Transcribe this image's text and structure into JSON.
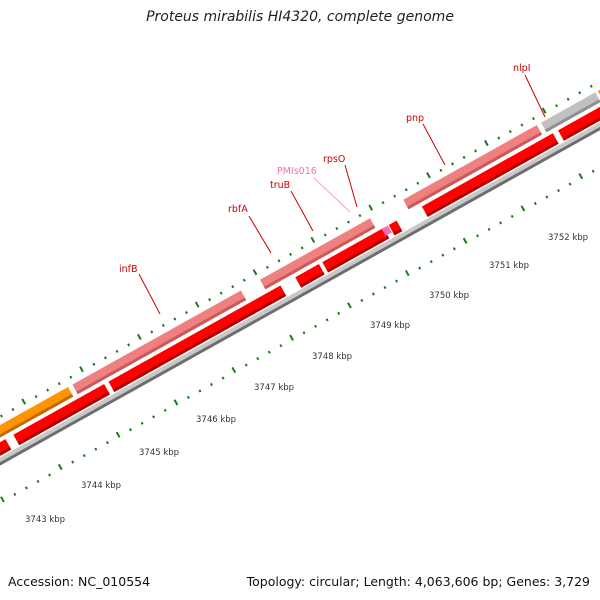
{
  "title": "Proteus mirabilis HI4320, complete genome",
  "footer": {
    "accession": "Accession: NC_010554",
    "summary": "Topology: circular; Length: 4,063,606 bp; Genes: 3,729"
  },
  "colors": {
    "cds": "#ff0000",
    "gene": "#f08080",
    "pseudo_or_misc": "#c0c0c0",
    "rna": "#ff8c00",
    "ncrna": "#ff69b4",
    "tick": "#1a7a1a",
    "backbone": "#808080"
  },
  "scale_labels": [
    "3743 kbp",
    "3744 kbp",
    "3745 kbp",
    "3746 kbp",
    "3747 kbp",
    "3748 kbp",
    "3749 kbp",
    "3750 kbp",
    "3751 kbp",
    "3752 kbp"
  ],
  "gene_labels": [
    {
      "name": "infB",
      "color": "#cc0000"
    },
    {
      "name": "rbfA",
      "color": "#cc0000"
    },
    {
      "name": "truB",
      "color": "#cc0000"
    },
    {
      "name": "PMIs016",
      "color": "#ff69b4"
    },
    {
      "name": "rpsO",
      "color": "#cc0000"
    },
    {
      "name": "pnp",
      "color": "#cc0000"
    },
    {
      "name": "nlpI",
      "color": "#cc0000"
    }
  ]
}
